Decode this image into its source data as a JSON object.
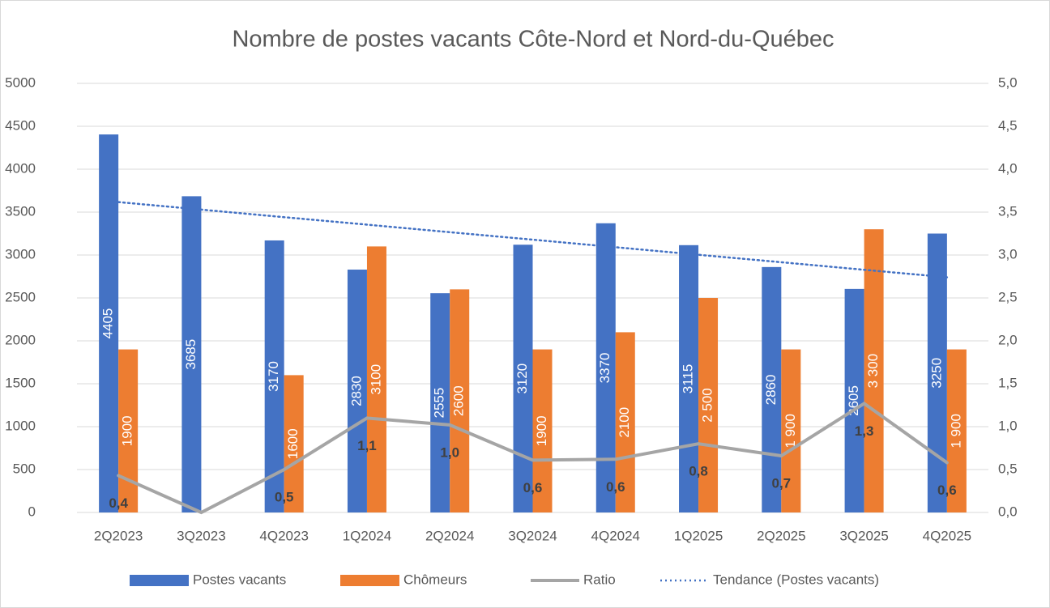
{
  "chart_data": {
    "type": "bar",
    "title": "Nombre de postes vacants Côte-Nord et Nord-du-Québec",
    "categories": [
      "2Q2023",
      "3Q2023",
      "4Q2023",
      "1Q2024",
      "2Q2024",
      "3Q2024",
      "4Q2024",
      "1Q2025",
      "2Q2025",
      "3Q2025",
      "4Q2025"
    ],
    "series": [
      {
        "name": "Postes vacants",
        "type": "bar",
        "color": "#4472c4",
        "values": [
          4405,
          3685,
          3170,
          2830,
          2555,
          3120,
          3370,
          3115,
          2860,
          2605,
          3250
        ]
      },
      {
        "name": "Chômeurs",
        "type": "bar",
        "color": "#ed7d31",
        "values": [
          1900,
          null,
          1600,
          3100,
          2600,
          1900,
          2100,
          2500,
          1900,
          3300,
          1900
        ],
        "value_labels": [
          "1900",
          null,
          "1600",
          "3100",
          "2600",
          "1900",
          "2100",
          "2 500",
          "1 900",
          "3 300",
          "1 900"
        ]
      },
      {
        "name": "Ratio",
        "type": "line",
        "axis": "y2",
        "color": "#a5a5a5",
        "values": [
          0.43,
          0,
          0.5,
          1.1,
          1.02,
          0.61,
          0.62,
          0.8,
          0.66,
          1.27,
          0.58
        ],
        "value_labels": [
          "0,4",
          null,
          "0,5",
          "1,1",
          "1,0",
          "0,6",
          "0,6",
          "0,8",
          "0,7",
          "1,3",
          "0,6"
        ]
      },
      {
        "name": "Tendance (Postes vacants)",
        "type": "line",
        "style": "dotted",
        "color": "#4472c4",
        "values": [
          3617,
          3529,
          3441,
          3354,
          3266,
          3179,
          3091,
          3003,
          2916,
          2828,
          2741
        ]
      }
    ],
    "ylim": [
      0,
      5000
    ],
    "yticks": [
      0,
      500,
      1000,
      1500,
      2000,
      2500,
      3000,
      3500,
      4000,
      4500,
      5000
    ],
    "y2lim": [
      0,
      5
    ],
    "y2ticks": [
      {
        "value": 0,
        "label": "0,0"
      },
      {
        "value": 0.5,
        "label": "0,5"
      },
      {
        "value": 1,
        "label": "1,0"
      },
      {
        "value": 1.5,
        "label": "1,5"
      },
      {
        "value": 2,
        "label": "2,0"
      },
      {
        "value": 2.5,
        "label": "2,5"
      },
      {
        "value": 3,
        "label": "3,0"
      },
      {
        "value": 3.5,
        "label": "3,5"
      },
      {
        "value": 4,
        "label": "4,0"
      },
      {
        "value": 4.5,
        "label": "4,5"
      },
      {
        "value": 5,
        "label": "5,0"
      }
    ],
    "grid": true,
    "legend": "bottom"
  }
}
